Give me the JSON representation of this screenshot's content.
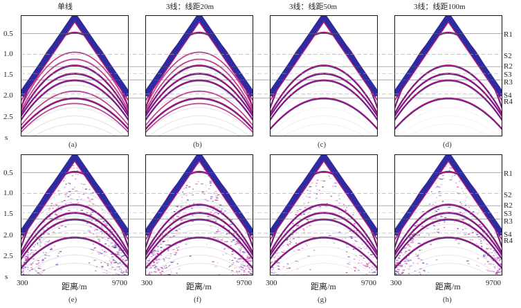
{
  "panel_titles": [
    "单线",
    "3线：线距20m",
    "3线：线距50m",
    "3线：线距100m"
  ],
  "captions_top": [
    "(a)",
    "(b)",
    "(c)",
    "(d)"
  ],
  "captions_bottom": [
    "(e)",
    "(f)",
    "(g)",
    "(h)"
  ],
  "y_ticks": [
    "0.5",
    "1.0",
    "1.5",
    "2.0",
    "2.5"
  ],
  "y_unit": "s",
  "x_label": "距离/m",
  "x_min": "300",
  "x_max": "9700",
  "horizon_labels": [
    "R1",
    "S2",
    "R2",
    "S3",
    "R3",
    "S4",
    "R4"
  ],
  "horizon_times": [
    0.5,
    1.0,
    1.3,
    1.47,
    1.63,
    1.97,
    2.07
  ],
  "horizon_style": [
    "solid",
    "dashed",
    "solid",
    "dashed",
    "solid",
    "dashed",
    "solid"
  ],
  "time_range": [
    0.05,
    3.0
  ],
  "colors": {
    "apex": "#2e2aa0",
    "event": "#b0157a",
    "noise": "#d23c96",
    "hline": "#777777"
  },
  "noise_levels": [
    0,
    0,
    0,
    0,
    1.0,
    0.9,
    0.6,
    0.75
  ],
  "faint_levels": [
    1.0,
    0.9,
    0.5,
    0.4,
    1.0,
    0.9,
    0.6,
    0.75
  ]
}
